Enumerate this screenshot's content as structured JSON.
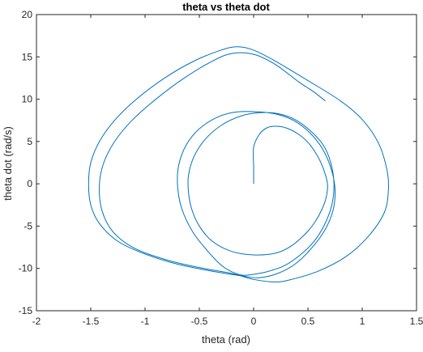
{
  "chart_data": {
    "type": "line",
    "title": "theta vs theta dot",
    "xlabel": "theta (rad)",
    "ylabel": "theta dot (rad/s)",
    "xlim": [
      -2,
      1.5
    ],
    "ylim": [
      -15,
      20
    ],
    "x_ticks": [
      -2,
      -1.5,
      -1,
      -0.5,
      0,
      0.5,
      1,
      1.5
    ],
    "x_tick_labels": [
      "-2",
      "-1.5",
      "-1",
      "-0.5",
      "0",
      "0.5",
      "1",
      "1.5"
    ],
    "y_ticks": [
      -15,
      -10,
      -5,
      0,
      5,
      10,
      15,
      20
    ],
    "y_tick_labels": [
      "-15",
      "-10",
      "-5",
      "0",
      "5",
      "10",
      "15",
      "20"
    ],
    "grid": false,
    "series": [
      {
        "color": "#0072BD",
        "points": [
          [
            0.0,
            0.0
          ],
          [
            0.0,
            2.0
          ],
          [
            0.0,
            4.3
          ],
          [
            0.05,
            5.8
          ],
          [
            0.12,
            6.6
          ],
          [
            0.2,
            6.8
          ],
          [
            0.3,
            6.6
          ],
          [
            0.42,
            5.8
          ],
          [
            0.52,
            4.6
          ],
          [
            0.6,
            3.0
          ],
          [
            0.65,
            1.5
          ],
          [
            0.68,
            0.0
          ],
          [
            0.67,
            -1.5
          ],
          [
            0.63,
            -3.0
          ],
          [
            0.56,
            -4.6
          ],
          [
            0.47,
            -6.0
          ],
          [
            0.34,
            -7.4
          ],
          [
            0.2,
            -8.2
          ],
          [
            0.0,
            -8.4
          ],
          [
            -0.2,
            -8.0
          ],
          [
            -0.38,
            -6.8
          ],
          [
            -0.5,
            -5.0
          ],
          [
            -0.57,
            -3.0
          ],
          [
            -0.6,
            -1.0
          ],
          [
            -0.6,
            1.0
          ],
          [
            -0.55,
            3.2
          ],
          [
            -0.45,
            5.2
          ],
          [
            -0.3,
            6.9
          ],
          [
            -0.12,
            8.0
          ],
          [
            0.05,
            8.4
          ],
          [
            0.22,
            8.3
          ],
          [
            0.38,
            7.6
          ],
          [
            0.52,
            6.3
          ],
          [
            0.64,
            4.6
          ],
          [
            0.71,
            2.5
          ],
          [
            0.74,
            0.0
          ],
          [
            0.72,
            -2.5
          ],
          [
            0.65,
            -4.9
          ],
          [
            0.55,
            -6.9
          ],
          [
            0.42,
            -8.5
          ],
          [
            0.28,
            -9.7
          ],
          [
            0.12,
            -10.4
          ],
          [
            0.0,
            -10.7
          ],
          [
            -0.1,
            -10.8
          ],
          [
            -0.2,
            -10.4
          ],
          [
            -0.3,
            -9.6
          ],
          [
            -0.42,
            -8.0
          ],
          [
            -0.56,
            -5.7
          ],
          [
            -0.66,
            -3.0
          ],
          [
            -0.7,
            -0.3
          ],
          [
            -0.69,
            2.2
          ],
          [
            -0.62,
            4.6
          ],
          [
            -0.5,
            6.5
          ],
          [
            -0.33,
            7.9
          ],
          [
            -0.15,
            8.5
          ],
          [
            0.05,
            8.5
          ],
          [
            0.22,
            8.2
          ],
          [
            0.38,
            7.4
          ],
          [
            0.52,
            6.0
          ],
          [
            0.64,
            4.0
          ],
          [
            0.72,
            1.5
          ],
          [
            0.75,
            -0.8
          ],
          [
            0.73,
            -3.2
          ],
          [
            0.65,
            -5.6
          ],
          [
            0.52,
            -7.8
          ],
          [
            0.38,
            -9.5
          ],
          [
            0.22,
            -10.6
          ],
          [
            0.05,
            -11.1
          ],
          [
            -0.1,
            -10.9
          ],
          [
            -0.35,
            -10.4
          ],
          [
            -0.7,
            -9.5
          ],
          [
            -1.0,
            -8.3
          ],
          [
            -1.25,
            -6.8
          ],
          [
            -1.42,
            -4.7
          ],
          [
            -1.5,
            -2.5
          ],
          [
            -1.52,
            0.0
          ],
          [
            -1.5,
            2.5
          ],
          [
            -1.42,
            5.0
          ],
          [
            -1.28,
            7.5
          ],
          [
            -1.08,
            10.0
          ],
          [
            -0.82,
            12.5
          ],
          [
            -0.55,
            14.5
          ],
          [
            -0.3,
            15.8
          ],
          [
            -0.15,
            16.2
          ],
          [
            0.0,
            15.8
          ],
          [
            0.2,
            14.5
          ],
          [
            0.5,
            12.2
          ],
          [
            0.8,
            9.8
          ],
          [
            1.0,
            7.6
          ],
          [
            1.15,
            4.8
          ],
          [
            1.23,
            1.5
          ],
          [
            1.24,
            -1.0
          ],
          [
            1.2,
            -3.5
          ],
          [
            1.05,
            -6.3
          ],
          [
            0.85,
            -8.6
          ],
          [
            0.6,
            -10.3
          ],
          [
            0.35,
            -11.3
          ],
          [
            0.2,
            -11.6
          ],
          [
            0.0,
            -11.3
          ],
          [
            -0.2,
            -10.6
          ],
          [
            -0.5,
            -9.9
          ],
          [
            -0.8,
            -9.0
          ],
          [
            -1.1,
            -7.6
          ],
          [
            -1.3,
            -5.6
          ],
          [
            -1.4,
            -3.0
          ],
          [
            -1.42,
            0.0
          ],
          [
            -1.38,
            2.5
          ],
          [
            -1.28,
            5.0
          ],
          [
            -1.12,
            7.5
          ],
          [
            -0.9,
            10.0
          ],
          [
            -0.65,
            12.4
          ],
          [
            -0.38,
            14.5
          ],
          [
            -0.2,
            15.4
          ],
          [
            0.0,
            15.3
          ],
          [
            0.2,
            14.1
          ],
          [
            0.42,
            12.0
          ],
          [
            0.55,
            10.9
          ],
          [
            0.66,
            9.8
          ]
        ]
      }
    ]
  }
}
